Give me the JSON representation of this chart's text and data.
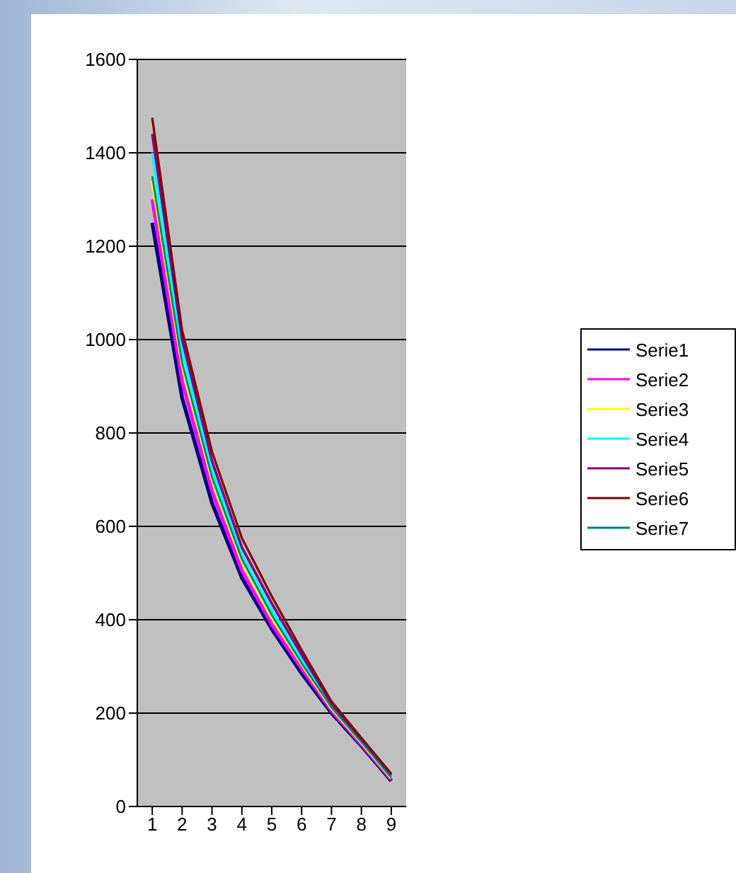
{
  "chart_data": {
    "type": "line",
    "categories": [
      "1",
      "2",
      "3",
      "4",
      "5",
      "6",
      "7",
      "8",
      "9"
    ],
    "ylim": [
      0,
      1600
    ],
    "yticks": [
      0,
      200,
      400,
      600,
      800,
      1000,
      1200,
      1400,
      1600
    ],
    "grid": "y",
    "legend": "right",
    "marker": "none",
    "series": [
      {
        "name": "Serie1",
        "color": "#000080",
        "values": [
          1250,
          875,
          650,
          490,
          380,
          285,
          200,
          130,
          55
        ]
      },
      {
        "name": "Serie2",
        "color": "#ff00ff",
        "values": [
          1300,
          910,
          675,
          505,
          390,
          295,
          205,
          133,
          58
        ]
      },
      {
        "name": "Serie3",
        "color": "#ffff00",
        "values": [
          1340,
          945,
          700,
          525,
          405,
          305,
          210,
          137,
          61
        ]
      },
      {
        "name": "Serie4",
        "color": "#00ffff",
        "values": [
          1400,
          975,
          720,
          540,
          420,
          315,
          215,
          140,
          64
        ]
      },
      {
        "name": "Serie5",
        "color": "#800080",
        "values": [
          1440,
          1000,
          740,
          555,
          435,
          325,
          220,
          143,
          67
        ]
      },
      {
        "name": "Serie6",
        "color": "#800000",
        "values": [
          1475,
          1020,
          760,
          575,
          450,
          335,
          225,
          147,
          70
        ]
      },
      {
        "name": "Serie7",
        "color": "#008080",
        "values": [
          1350,
          950,
          705,
          530,
          410,
          307,
          212,
          138,
          62
        ]
      }
    ]
  }
}
